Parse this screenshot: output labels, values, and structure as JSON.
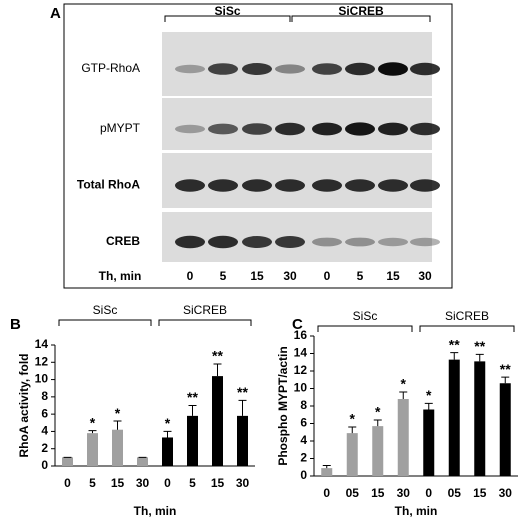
{
  "figure_a": {
    "panel_label": "A",
    "groups": [
      "SiSc",
      "SiCREB"
    ],
    "rows": [
      "GTP-RhoA",
      "pMYPT",
      "Total RhoA",
      "CREB"
    ],
    "time_label": "Th, min",
    "lanes": [
      "0",
      "5",
      "15",
      "30",
      "0",
      "5",
      "15",
      "30"
    ]
  },
  "chart_data": [
    {
      "type": "bar",
      "panel_label": "B",
      "ylabel": "RhoA activity, fold",
      "xlabel": "Th, min",
      "groups": [
        "SiSc",
        "SiCREB"
      ],
      "categories": [
        "0",
        "5",
        "15",
        "30",
        "0",
        "5",
        "15",
        "30"
      ],
      "values": [
        1,
        3.8,
        4.2,
        1,
        3.3,
        5.8,
        10.4,
        5.8
      ],
      "errors": [
        0,
        0.3,
        1.0,
        0,
        0.7,
        1.2,
        1.4,
        1.8
      ],
      "annotations": [
        null,
        "*",
        "*",
        null,
        "*",
        "**",
        "**",
        "**"
      ],
      "colors": [
        "#a0a0a0",
        "#a0a0a0",
        "#a0a0a0",
        "#a0a0a0",
        "#000000",
        "#000000",
        "#000000",
        "#000000"
      ],
      "ylim": [
        0,
        14
      ],
      "yticks": [
        0,
        2,
        4,
        6,
        8,
        10,
        12,
        14
      ]
    },
    {
      "type": "bar",
      "panel_label": "C",
      "ylabel": "Phospho MYPT/actin",
      "xlabel": "Th, min",
      "groups": [
        "SiSc",
        "SiCREB"
      ],
      "categories": [
        "0",
        "05",
        "15",
        "30",
        "0",
        "05",
        "15",
        "30"
      ],
      "values": [
        0.9,
        4.9,
        5.7,
        8.8,
        7.6,
        13.3,
        13.1,
        10.6
      ],
      "errors": [
        0.3,
        0.7,
        0.7,
        0.8,
        0.7,
        0.8,
        0.8,
        0.7
      ],
      "annotations": [
        null,
        "*",
        "*",
        "*",
        "*",
        "**",
        "**",
        "**"
      ],
      "colors": [
        "#a0a0a0",
        "#a0a0a0",
        "#a0a0a0",
        "#a0a0a0",
        "#000000",
        "#000000",
        "#000000",
        "#000000"
      ],
      "ylim": [
        0,
        16
      ],
      "yticks": [
        0,
        2,
        4,
        6,
        8,
        10,
        12,
        14,
        16
      ]
    }
  ]
}
